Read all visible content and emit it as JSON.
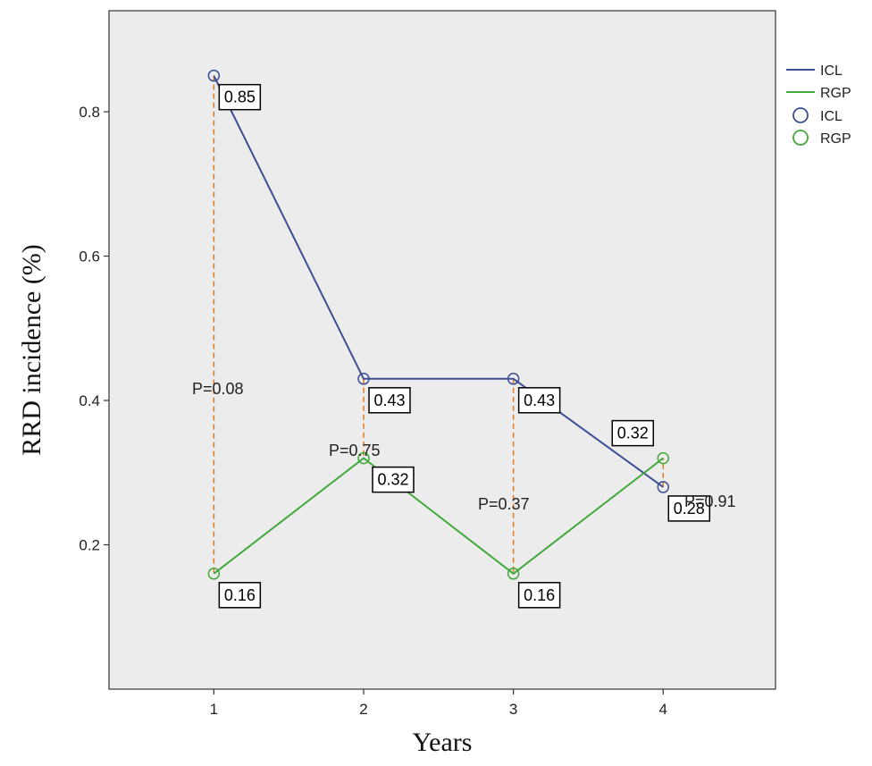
{
  "chart_data": {
    "type": "line",
    "title": "",
    "xlabel": "Years",
    "ylabel": "RRD incidence (%)",
    "x": [
      1,
      2,
      3,
      4
    ],
    "x_tick_labels": [
      "1",
      "2",
      "3",
      "4"
    ],
    "xlim": [
      0.3,
      4.75
    ],
    "ylim": [
      0.0,
      0.94
    ],
    "y_ticks": [
      0.2,
      0.4,
      0.6,
      0.8
    ],
    "y_tick_labels": [
      "0.2",
      "0.4",
      "0.6",
      "0.8"
    ],
    "grid": false,
    "legend_position": "right, outside top",
    "legend": [
      {
        "label": "ICL",
        "kind": "line",
        "color": "#3d4f94"
      },
      {
        "label": "RGP",
        "kind": "line",
        "color": "#41a83a"
      },
      {
        "label": "ICL",
        "kind": "marker",
        "color": "#3d4f94"
      },
      {
        "label": "RGP",
        "kind": "marker",
        "color": "#41a83a"
      }
    ],
    "series": [
      {
        "name": "ICL",
        "color": "#3d4f94",
        "values": [
          0.85,
          0.43,
          0.43,
          0.28
        ],
        "data_labels": [
          "0.85",
          "0.43",
          "0.43",
          "0.28"
        ]
      },
      {
        "name": "RGP",
        "color": "#41a83a",
        "values": [
          0.16,
          0.32,
          0.16,
          0.32
        ],
        "data_labels": [
          "0.16",
          "0.32",
          "0.16",
          "0.32"
        ]
      }
    ],
    "p_values": [
      {
        "x": 1,
        "label": "P=0.08"
      },
      {
        "x": 2,
        "label": "P=0.75"
      },
      {
        "x": 3,
        "label": "P=0.37"
      },
      {
        "x": 4,
        "label": "P=0.91"
      }
    ],
    "colors": {
      "plot_background": "#ececec",
      "connector": "#e07a22"
    }
  }
}
